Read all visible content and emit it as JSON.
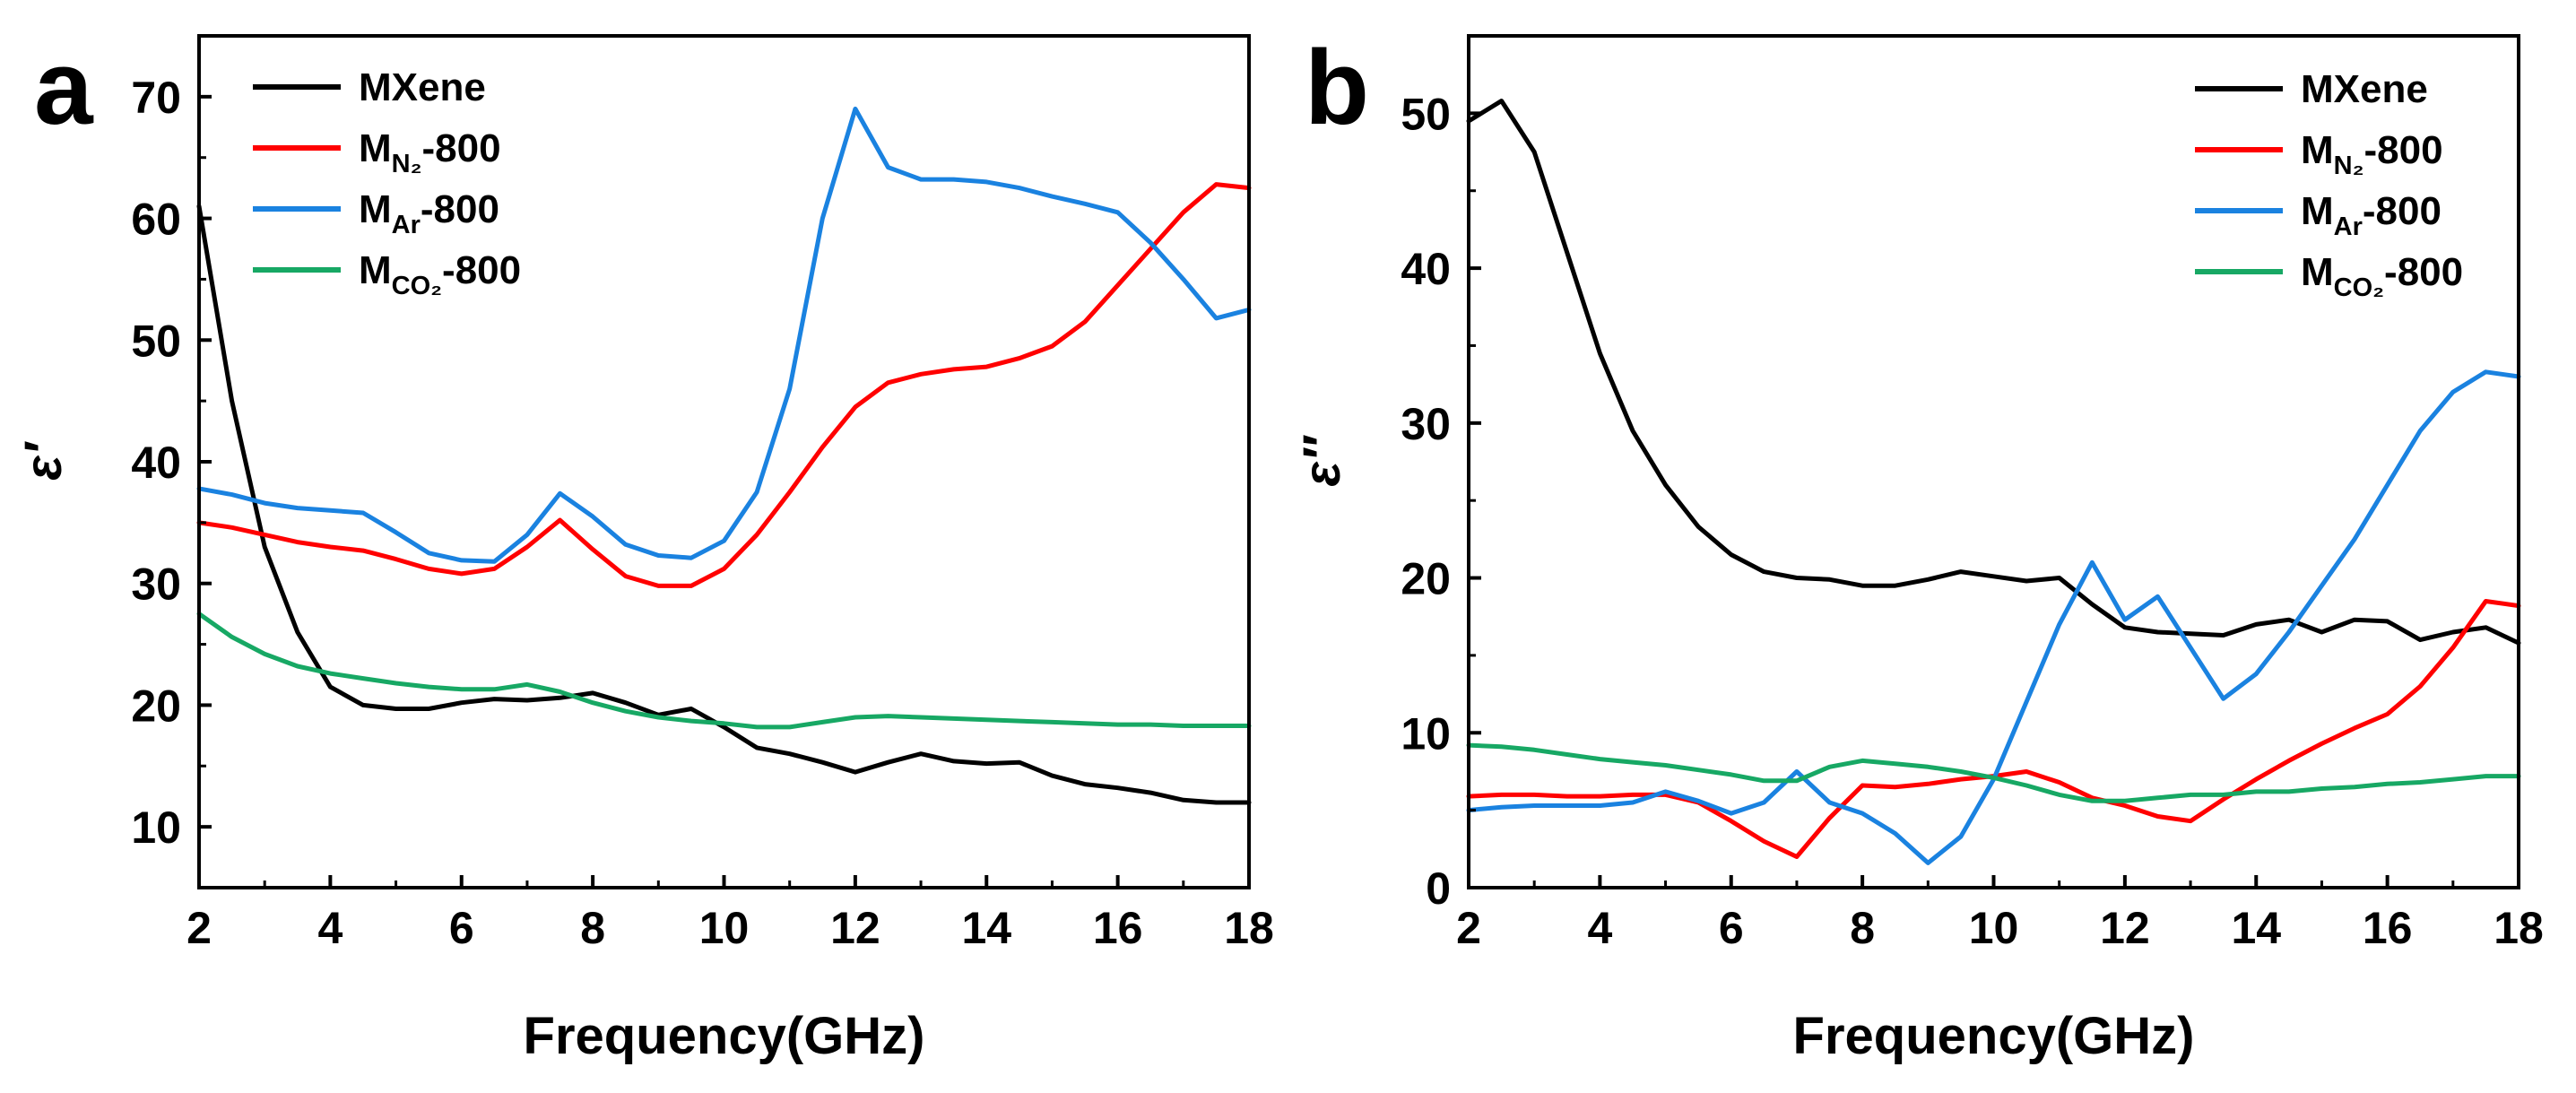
{
  "chart_data": [
    {
      "type": "line",
      "panel_label": "a",
      "xlabel": "Frequency(GHz)",
      "ylabel": "ε′",
      "xlim": [
        2,
        18
      ],
      "ylim": [
        5,
        75
      ],
      "xticks": [
        2,
        4,
        6,
        8,
        10,
        12,
        14,
        16,
        18
      ],
      "yticks": [
        10,
        20,
        30,
        40,
        50,
        60,
        70
      ],
      "legend_position": "top-left",
      "series": [
        {
          "name": "MXene",
          "legend": {
            "base": "M",
            "sub": "",
            "tail": "Xene"
          },
          "color": "#000000",
          "x": [
            2,
            2.5,
            3,
            3.5,
            4,
            4.5,
            5,
            5.5,
            6,
            6.5,
            7,
            7.5,
            8,
            8.5,
            9,
            9.5,
            10,
            10.5,
            11,
            11.5,
            12,
            12.5,
            13,
            13.5,
            14,
            14.5,
            15,
            15.5,
            16,
            16.5,
            17,
            17.5,
            18
          ],
          "y": [
            61,
            45,
            33,
            26,
            21.5,
            20,
            19.7,
            19.7,
            20.2,
            20.5,
            20.4,
            20.6,
            21,
            20.2,
            19.2,
            19.7,
            18.2,
            16.5,
            16,
            15.3,
            14.5,
            15.3,
            16,
            15.4,
            15.2,
            15.3,
            14.2,
            13.5,
            13.2,
            12.8,
            12.2,
            12,
            12
          ]
        },
        {
          "name": "MN2-800",
          "legend": {
            "base": "M",
            "sub": "N₂",
            "tail": "-800"
          },
          "color": "#ff0000",
          "x": [
            2,
            2.5,
            3,
            3.5,
            4,
            4.5,
            5,
            5.5,
            6,
            6.5,
            7,
            7.5,
            8,
            8.5,
            9,
            9.5,
            10,
            10.5,
            11,
            11.5,
            12,
            12.5,
            13,
            13.5,
            14,
            14.5,
            15,
            15.5,
            16,
            16.5,
            17,
            17.5,
            18
          ],
          "y": [
            35,
            34.6,
            34,
            33.4,
            33,
            32.7,
            32,
            31.2,
            30.8,
            31.2,
            33,
            35.2,
            32.8,
            30.6,
            29.8,
            29.8,
            31.2,
            34,
            37.5,
            41.2,
            44.5,
            46.5,
            47.2,
            47.6,
            47.8,
            48.5,
            49.5,
            51.5,
            54.5,
            57.5,
            60.5,
            62.8,
            62.5
          ]
        },
        {
          "name": "MAr-800",
          "legend": {
            "base": "M",
            "sub": "Ar",
            "tail": "-800"
          },
          "color": "#1a82e0",
          "x": [
            2,
            2.5,
            3,
            3.5,
            4,
            4.5,
            5,
            5.5,
            6,
            6.5,
            7,
            7.5,
            8,
            8.5,
            9,
            9.5,
            10,
            10.5,
            11,
            11.5,
            12,
            12.5,
            13,
            13.5,
            14,
            14.5,
            15,
            15.5,
            16,
            16.5,
            17,
            17.5,
            18
          ],
          "y": [
            37.8,
            37.3,
            36.6,
            36.2,
            36,
            35.8,
            34.2,
            32.5,
            31.9,
            31.8,
            34,
            37.4,
            35.5,
            33.2,
            32.3,
            32.1,
            33.5,
            37.5,
            46,
            60,
            69,
            64.2,
            63.2,
            63.2,
            63,
            62.5,
            61.8,
            61.2,
            60.5,
            58,
            55,
            51.8,
            52.5
          ]
        },
        {
          "name": "MCO2-800",
          "legend": {
            "base": "M",
            "sub": "CO₂",
            "tail": "-800"
          },
          "color": "#17a864",
          "x": [
            2,
            2.5,
            3,
            3.5,
            4,
            4.5,
            5,
            5.5,
            6,
            6.5,
            7,
            7.5,
            8,
            8.5,
            9,
            9.5,
            10,
            10.5,
            11,
            11.5,
            12,
            12.5,
            13,
            13.5,
            14,
            14.5,
            15,
            15.5,
            16,
            16.5,
            17,
            17.5,
            18
          ],
          "y": [
            27.5,
            25.6,
            24.2,
            23.2,
            22.6,
            22.2,
            21.8,
            21.5,
            21.3,
            21.3,
            21.7,
            21.1,
            20.2,
            19.5,
            19,
            18.7,
            18.5,
            18.2,
            18.2,
            18.6,
            19,
            19.1,
            19,
            18.9,
            18.8,
            18.7,
            18.6,
            18.5,
            18.4,
            18.4,
            18.3,
            18.3,
            18.3
          ]
        }
      ]
    },
    {
      "type": "line",
      "panel_label": "b",
      "xlabel": "Frequency(GHz)",
      "ylabel": "ε″",
      "xlim": [
        2,
        18
      ],
      "ylim": [
        0,
        55
      ],
      "xticks": [
        2,
        4,
        6,
        8,
        10,
        12,
        14,
        16,
        18
      ],
      "yticks": [
        0,
        10,
        20,
        30,
        40,
        50
      ],
      "legend_position": "top-right",
      "series": [
        {
          "name": "MXene",
          "legend": {
            "base": "M",
            "sub": "",
            "tail": "Xene"
          },
          "color": "#000000",
          "x": [
            2,
            2.5,
            3,
            3.5,
            4,
            4.5,
            5,
            5.5,
            6,
            6.5,
            7,
            7.5,
            8,
            8.5,
            9,
            9.5,
            10,
            10.5,
            11,
            11.5,
            12,
            12.5,
            13,
            13.5,
            14,
            14.5,
            15,
            15.5,
            16,
            16.5,
            17,
            17.5,
            18
          ],
          "y": [
            49.5,
            50.8,
            47.5,
            41,
            34.5,
            29.5,
            26,
            23.3,
            21.5,
            20.4,
            20,
            19.9,
            19.5,
            19.5,
            19.9,
            20.4,
            20.1,
            19.8,
            20,
            18.3,
            16.8,
            16.5,
            16.4,
            16.3,
            17,
            17.3,
            16.5,
            17.3,
            17.2,
            16,
            16.5,
            16.8,
            15.8
          ]
        },
        {
          "name": "MN2-800",
          "legend": {
            "base": "M",
            "sub": "N₂",
            "tail": "-800"
          },
          "color": "#ff0000",
          "x": [
            2,
            2.5,
            3,
            3.5,
            4,
            4.5,
            5,
            5.5,
            6,
            6.5,
            7,
            7.5,
            8,
            8.5,
            9,
            9.5,
            10,
            10.5,
            11,
            11.5,
            12,
            12.5,
            13,
            13.5,
            14,
            14.5,
            15,
            15.5,
            16,
            16.5,
            17,
            17.5,
            18
          ],
          "y": [
            5.9,
            6,
            6,
            5.9,
            5.9,
            6,
            6,
            5.5,
            4.3,
            3,
            2,
            4.5,
            6.6,
            6.5,
            6.7,
            7,
            7.2,
            7.5,
            6.8,
            5.8,
            5.3,
            4.6,
            4.3,
            5.7,
            7,
            8.2,
            9.3,
            10.3,
            11.2,
            13,
            15.5,
            18.5,
            18.2
          ]
        },
        {
          "name": "MAr-800",
          "legend": {
            "base": "M",
            "sub": "Ar",
            "tail": "-800"
          },
          "color": "#1a82e0",
          "x": [
            2,
            2.5,
            3,
            3.5,
            4,
            4.5,
            5,
            5.5,
            6,
            6.5,
            7,
            7.5,
            8,
            8.5,
            9,
            9.5,
            10,
            10.5,
            11,
            11.5,
            12,
            12.5,
            13,
            13.5,
            14,
            14.5,
            15,
            15.5,
            16,
            16.5,
            17,
            17.5,
            18
          ],
          "y": [
            5,
            5.2,
            5.3,
            5.3,
            5.3,
            5.5,
            6.2,
            5.6,
            4.8,
            5.5,
            7.5,
            5.5,
            4.8,
            3.5,
            1.6,
            3.3,
            7,
            12,
            17,
            21,
            17.3,
            18.8,
            15.5,
            12.2,
            13.8,
            16.5,
            19.5,
            22.5,
            26,
            29.5,
            32,
            33.3,
            33
          ]
        },
        {
          "name": "MCO2-800",
          "legend": {
            "base": "M",
            "sub": "CO₂",
            "tail": "-800"
          },
          "color": "#17a864",
          "x": [
            2,
            2.5,
            3,
            3.5,
            4,
            4.5,
            5,
            5.5,
            6,
            6.5,
            7,
            7.5,
            8,
            8.5,
            9,
            9.5,
            10,
            10.5,
            11,
            11.5,
            12,
            12.5,
            13,
            13.5,
            14,
            14.5,
            15,
            15.5,
            16,
            16.5,
            17,
            17.5,
            18
          ],
          "y": [
            9.2,
            9.1,
            8.9,
            8.6,
            8.3,
            8.1,
            7.9,
            7.6,
            7.3,
            6.9,
            6.9,
            7.8,
            8.2,
            8,
            7.8,
            7.5,
            7.1,
            6.6,
            6,
            5.6,
            5.6,
            5.8,
            6,
            6,
            6.2,
            6.2,
            6.4,
            6.5,
            6.7,
            6.8,
            7,
            7.2,
            7.2
          ]
        }
      ]
    }
  ]
}
